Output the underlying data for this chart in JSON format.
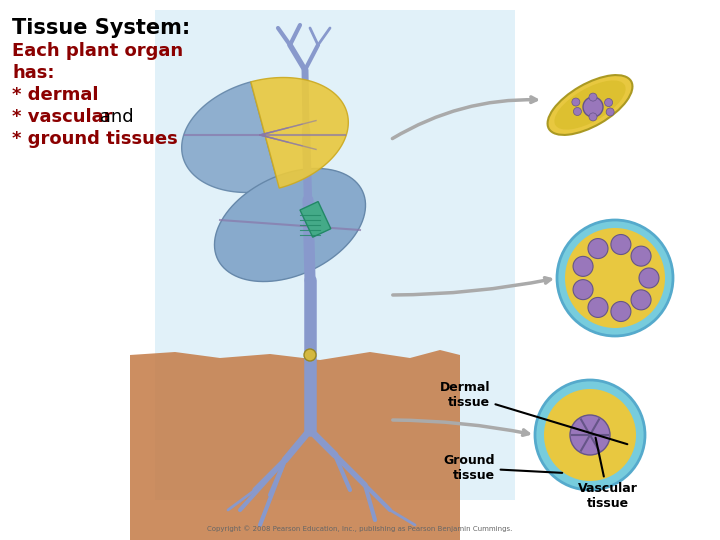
{
  "bg_color": "#ffffff",
  "title": "Tissue System:",
  "title_color": "#000000",
  "title_fontsize": 15,
  "body_lines": [
    "Each plant organ",
    "has:",
    "* dermal",
    "* vascular",
    "* ground tissues"
  ],
  "body_color": "#8b0000",
  "body_fontsize": 13,
  "label_dermal": "Dermal\ntissue",
  "label_ground": "Ground\ntissue",
  "label_vascular": "Vascular\ntissue",
  "copyright": "Copyright © 2008 Pearson Education, Inc., publishing as Pearson Benjamin Cummings.",
  "stem_color": "#8899cc",
  "leaf_blue": "#88aacc",
  "leaf_yellow": "#e8c840",
  "soil_color": "#c47a45",
  "cross_outer": "#77ccdd",
  "cross_yellow": "#e8c840",
  "cross_purple": "#9977bb",
  "arrow_color": "#aaaaaa",
  "bg_blue": "#cde8f5"
}
